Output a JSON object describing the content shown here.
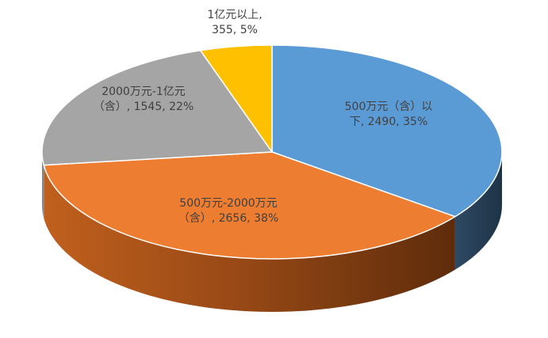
{
  "chart_data": {
    "type": "pie",
    "style": "3d",
    "title": "",
    "slices": [
      {
        "category": "500万元（含）以下",
        "value": 2490,
        "percent": 35,
        "color": "#5B9BD5",
        "label_lines": [
          "500万元（含）以",
          "下, 2490, 35%"
        ]
      },
      {
        "category": "500万元-2000万元（含）",
        "value": 2656,
        "percent": 38,
        "color": "#ED7D31",
        "label_lines": [
          "500万元-2000万元",
          "（含）, 2656, 38%"
        ]
      },
      {
        "category": "2000万元-1亿元（含）",
        "value": 1545,
        "percent": 22,
        "color": "#A5A5A5",
        "label_lines": [
          "2000万元-1亿元",
          "（含）, 1545, 22%"
        ]
      },
      {
        "category": "1亿元以上",
        "value": 355,
        "percent": 5,
        "color": "#FFC000",
        "label_lines": [
          "1亿元以上,",
          "355, 5%"
        ]
      }
    ]
  }
}
